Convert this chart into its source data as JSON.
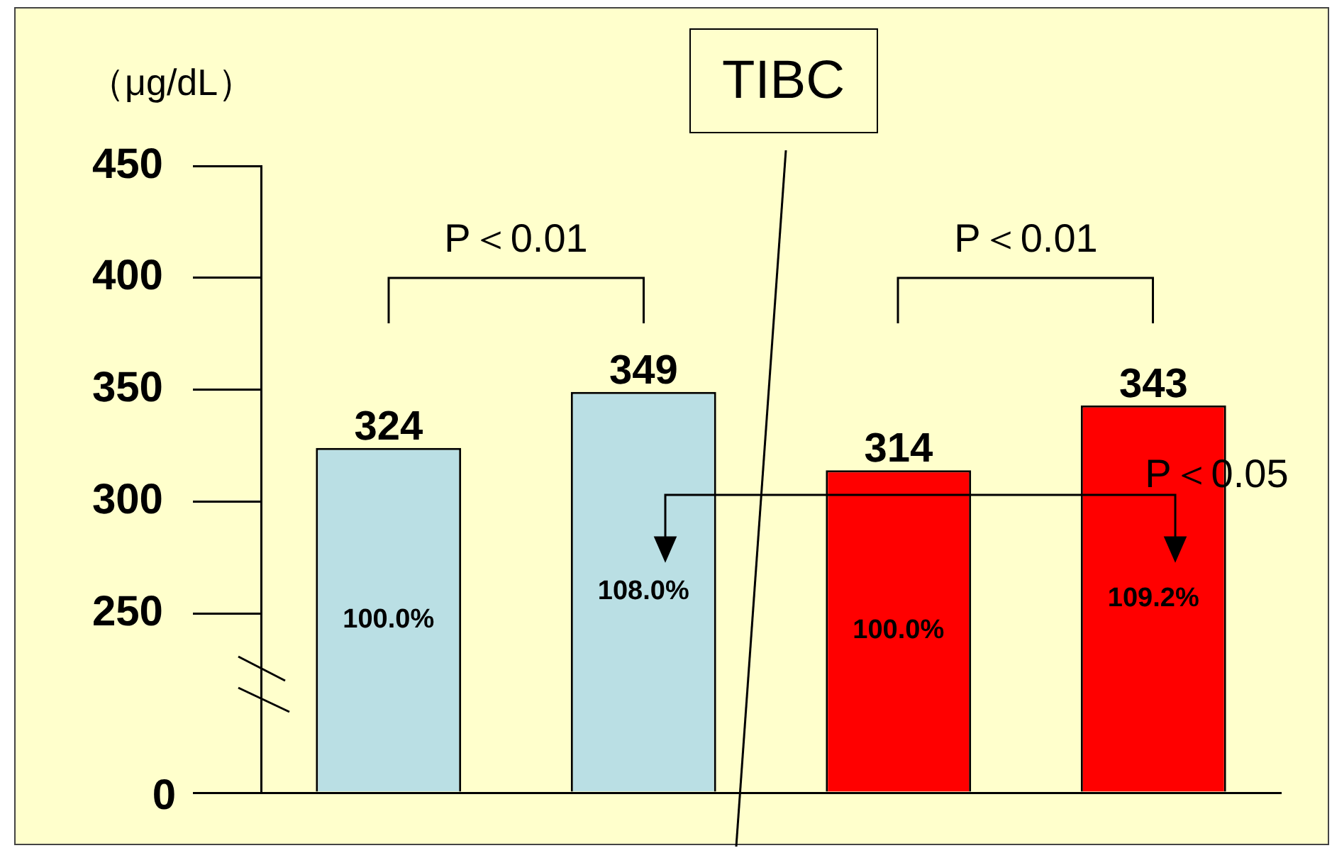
{
  "chart_data": {
    "type": "bar",
    "title": "TIBC",
    "ylabel": "（μg/dL）",
    "categories": [
      null,
      null,
      null,
      null
    ],
    "values": [
      324,
      349,
      314,
      343
    ],
    "colors": [
      "#badfe4",
      "#badfe4",
      "#ff0000",
      "#ff0000"
    ],
    "data_labels": true,
    "ylim": [
      170,
      450
    ],
    "yticks": [
      {
        "value": 170,
        "label": null
      },
      250,
      300,
      350,
      400,
      450
    ],
    "grid": false,
    "legend": false,
    "annotations": [
      "100.0%",
      "108.0%",
      "100.0%",
      "109.2%",
      "P＜0.01",
      "P＜0.01",
      "P＜0.05",
      "0"
    ]
  }
}
